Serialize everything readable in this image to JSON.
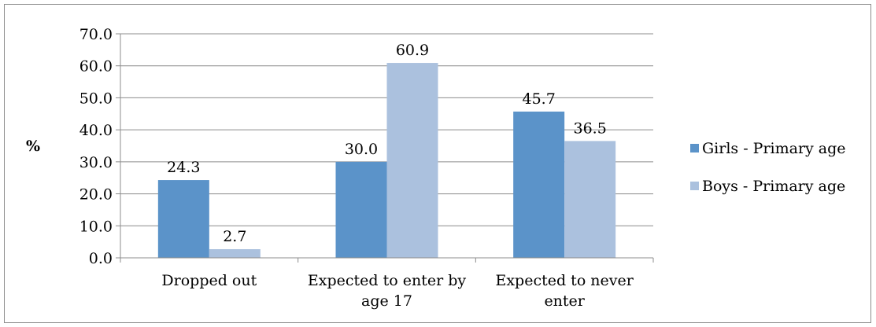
{
  "chart_data": {
    "type": "bar",
    "ylabel": "%",
    "categories": [
      [
        "Dropped out"
      ],
      [
        "Expected to enter by",
        "age 17"
      ],
      [
        "Expected to never",
        "enter"
      ]
    ],
    "series": [
      {
        "name": "Girls - Primary age",
        "color": "#5b93c9",
        "values": [
          24.3,
          30.0,
          45.7
        ]
      },
      {
        "name": "Boys - Primary age",
        "color": "#abc1de",
        "values": [
          2.7,
          60.9,
          36.5
        ]
      }
    ],
    "ylim": [
      0,
      70
    ],
    "yticks": [
      "0.0",
      "10.0",
      "20.0",
      "30.0",
      "40.0",
      "50.0",
      "60.0",
      "70.0"
    ],
    "grid": true,
    "legend_position": "right"
  }
}
